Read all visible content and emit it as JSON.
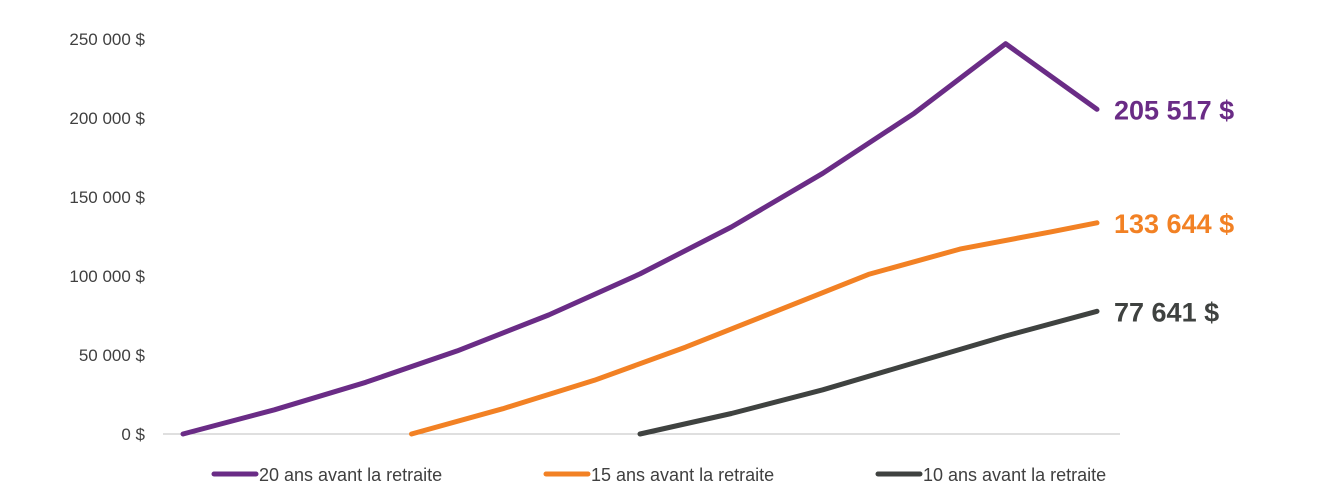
{
  "chart_data": {
    "type": "line",
    "title": "",
    "xlabel": "",
    "ylabel": "",
    "ylim": [
      0,
      250000
    ],
    "yticks": [
      0,
      50000,
      100000,
      150000,
      200000,
      250000
    ],
    "ytick_labels": [
      "0 $",
      "50 000 $",
      "100 000 $",
      "150 000 $",
      "200 000 $",
      "250 000 $"
    ],
    "x_range": [
      0,
      20
    ],
    "grid": false,
    "legend_position": "bottom",
    "series": [
      {
        "name": "20 ans avant la retraite",
        "color": "#6A2C86",
        "x": [
          0,
          2,
          4,
          6,
          8,
          10,
          12,
          14,
          16,
          18,
          20
        ],
        "y": [
          0,
          15300,
          32700,
          52600,
          75300,
          101300,
          131000,
          165000,
          203000,
          247000,
          205517
        ],
        "end_label": "205 517 $"
      },
      {
        "name": "15 ans avant la retraite",
        "color": "#F28124",
        "x": [
          5,
          7,
          9,
          11,
          13,
          15,
          17,
          19,
          20
        ],
        "y": [
          0,
          16000,
          34000,
          55000,
          78000,
          101000,
          117000,
          128000,
          133644
        ],
        "end_label": "133 644 $"
      },
      {
        "name": "10 ans avant la retraite",
        "color": "#3F4240",
        "x": [
          10,
          12,
          14,
          16,
          18,
          20
        ],
        "y": [
          0,
          13000,
          28000,
          45000,
          62000,
          77641
        ],
        "end_label": "77 641 $"
      }
    ]
  }
}
